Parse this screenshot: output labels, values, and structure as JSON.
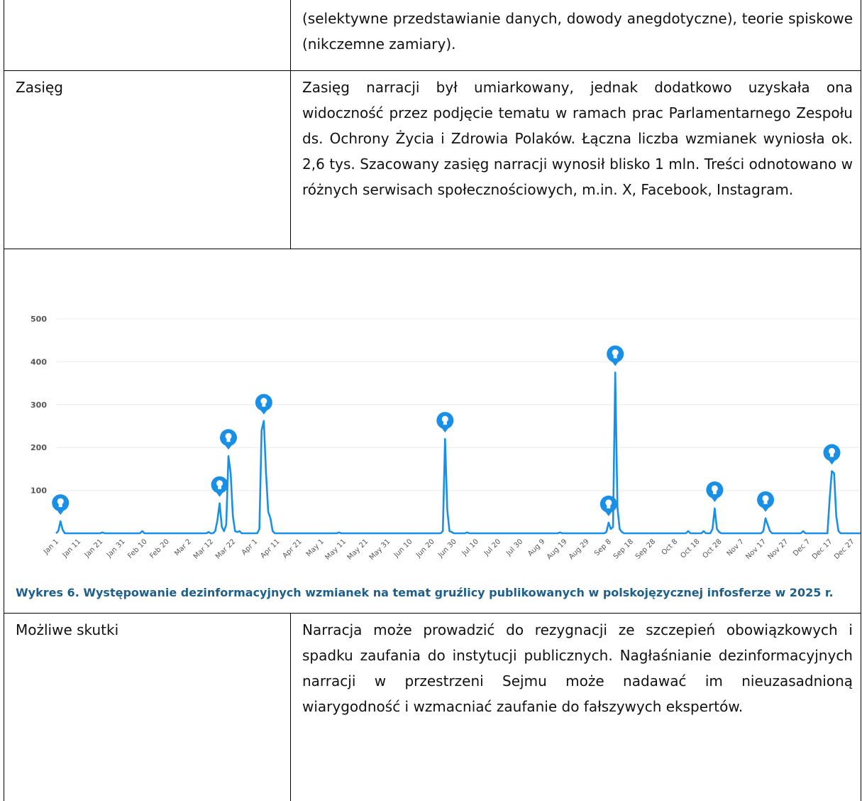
{
  "table": {
    "rows": [
      {
        "text": "(selektywne przedstawianie danych, dowody anegdotyczne), teorie spiskowe (nikczemne zamiary)."
      },
      {
        "label": "Zasięg",
        "text": "Zasięg narracji był umiarkowany, jednak dodatkowo uzyskała ona widoczność przez podjęcie tematu w ramach prac Parlamentarnego Zespołu ds. Ochrony Życia i Zdrowia Polaków. Łączna liczba wzmianek wyniosła ok. 2,6 tys. Szacowany zasięg narracji wynosił blisko 1 mln. Treści odnotowano w różnych serwisach społecznościowych, m.in. X, Facebook, Instagram."
      },
      {
        "label": "Możliwe skutki",
        "text": "Narracja może prowadzić do rezygnacji ze szczepień obowiązkowych i spadku zaufania do instytucji publicznych. Nagłaśnianie dezinformacyjnych narracji w przestrzeni Sejmu może nadawać im nieuzasadnioną wiarygodność i wzmacniać zaufanie do fałszywych ekspertów."
      }
    ]
  },
  "chart_data": {
    "type": "line",
    "caption": "Wykres 6. Występowanie dezinformacyjnych wzmianek na temat gruźlicy publikowanych w polskojęzycznej infosferze w 2025 r.",
    "color": "#1a8fe6",
    "ylim": [
      0,
      500
    ],
    "yticks": [
      100,
      200,
      300,
      400,
      500
    ],
    "grid": true,
    "categories": [
      "Jan 1",
      null,
      null,
      null,
      null,
      null,
      null,
      null,
      null,
      null,
      "Jan 11",
      null,
      null,
      null,
      null,
      null,
      null,
      null,
      null,
      null,
      "Jan 21",
      null,
      null,
      null,
      null,
      null,
      null,
      null,
      null,
      null,
      "Jan 31",
      null,
      null,
      null,
      null,
      null,
      null,
      null,
      null,
      null,
      "Feb 10",
      null,
      null,
      null,
      null,
      null,
      null,
      null,
      null,
      null,
      "Feb 20",
      null,
      null,
      null,
      null,
      null,
      null,
      null,
      null,
      null,
      "Mar 2",
      null,
      null,
      null,
      null,
      null,
      null,
      null,
      null,
      null,
      "Mar 12",
      null,
      null,
      null,
      null,
      null,
      null,
      null,
      null,
      null,
      "Mar 22",
      null,
      null,
      null,
      null,
      null,
      null,
      null,
      null,
      null,
      "Apr 1",
      null,
      null,
      null,
      null,
      null,
      null,
      null,
      null,
      null,
      "Apr 11",
      null,
      null,
      null,
      null,
      null,
      null,
      null,
      null,
      null,
      "Apr 21",
      null,
      null,
      null,
      null,
      null,
      null,
      null,
      null,
      null,
      "May 1",
      null,
      null,
      null,
      null,
      null,
      null,
      null,
      null,
      null,
      "May 11",
      null,
      null,
      null,
      null,
      null,
      null,
      null,
      null,
      null,
      "May 21",
      null,
      null,
      null,
      null,
      null,
      null,
      null,
      null,
      null,
      "May 31",
      null,
      null,
      null,
      null,
      null,
      null,
      null,
      null,
      null,
      "Jun 10",
      null,
      null,
      null,
      null,
      null,
      null,
      null,
      null,
      null,
      "Jun 20",
      null,
      null,
      null,
      null,
      null,
      null,
      null,
      null,
      null,
      "Jun 30",
      null,
      null,
      null,
      null,
      null,
      null,
      null,
      null,
      null,
      "Jul 10",
      null,
      null,
      null,
      null,
      null,
      null,
      null,
      null,
      null,
      "Jul 20",
      null,
      null,
      null,
      null,
      null,
      null,
      null,
      null,
      null,
      "Jul 30",
      null,
      null,
      null,
      null,
      null,
      null,
      null,
      null,
      null,
      "Aug 9",
      null,
      null,
      null,
      null,
      null,
      null,
      null,
      null,
      null,
      "Aug 19",
      null,
      null,
      null,
      null,
      null,
      null,
      null,
      null,
      null,
      "Aug 29",
      null,
      null,
      null,
      null,
      null,
      null,
      null,
      null,
      null,
      "Sep 8",
      null,
      null,
      null,
      null,
      null,
      null,
      null,
      null,
      null,
      "Sep 18",
      null,
      null,
      null,
      null,
      null,
      null,
      null,
      null,
      null,
      "Sep 28",
      null,
      null,
      null,
      null,
      null,
      null,
      null,
      null,
      null,
      "Oct 8",
      null,
      null,
      null,
      null,
      null,
      null,
      null,
      null,
      null,
      "Oct 18",
      null,
      null,
      null,
      null,
      null,
      null,
      null,
      null,
      null,
      "Oct 28",
      null,
      null,
      null,
      null,
      null,
      null,
      null,
      null,
      null,
      "Nov 7",
      null,
      null,
      null,
      null,
      null,
      null,
      null,
      null,
      null,
      "Nov 17",
      null,
      null,
      null,
      null,
      null,
      null,
      null,
      null,
      null,
      "Nov 27",
      null,
      null,
      null,
      null,
      null,
      null,
      null,
      null,
      null,
      "Dec 7",
      null,
      null,
      null,
      null,
      null,
      null,
      null,
      null,
      null,
      "Dec 17",
      null,
      null,
      null,
      null,
      null,
      null,
      null,
      null,
      null,
      "Dec 27",
      null,
      null,
      null,
      null
    ],
    "values": [
      0,
      5,
      28,
      8,
      0,
      0,
      0,
      0,
      0,
      0,
      0,
      0,
      0,
      0,
      0,
      0,
      0,
      0,
      0,
      0,
      0,
      2,
      0,
      0,
      0,
      0,
      0,
      0,
      0,
      0,
      0,
      0,
      0,
      0,
      0,
      0,
      0,
      0,
      0,
      5,
      0,
      0,
      0,
      0,
      0,
      0,
      0,
      0,
      0,
      0,
      0,
      0,
      0,
      0,
      0,
      0,
      0,
      0,
      0,
      0,
      0,
      0,
      0,
      0,
      0,
      0,
      0,
      0,
      0,
      3,
      0,
      0,
      5,
      30,
      70,
      15,
      5,
      20,
      180,
      140,
      40,
      5,
      3,
      5,
      0,
      0,
      0,
      0,
      0,
      0,
      0,
      0,
      10,
      240,
      262,
      140,
      50,
      35,
      5,
      0,
      0,
      0,
      0,
      0,
      0,
      0,
      0,
      0,
      0,
      0,
      0,
      0,
      0,
      0,
      0,
      0,
      0,
      0,
      0,
      0,
      0,
      0,
      0,
      0,
      0,
      0,
      0,
      0,
      2,
      0,
      0,
      0,
      0,
      0,
      0,
      0,
      0,
      0,
      0,
      0,
      0,
      0,
      0,
      0,
      0,
      0,
      0,
      0,
      0,
      0,
      0,
      0,
      0,
      0,
      0,
      0,
      0,
      0,
      0,
      0,
      0,
      0,
      0,
      0,
      0,
      0,
      0,
      0,
      0,
      0,
      0,
      0,
      0,
      0,
      0,
      5,
      220,
      55,
      5,
      3,
      0,
      0,
      0,
      0,
      0,
      0,
      2,
      0,
      0,
      0,
      0,
      0,
      0,
      0,
      0,
      0,
      0,
      0,
      0,
      0,
      0,
      0,
      0,
      0,
      0,
      0,
      0,
      0,
      0,
      0,
      0,
      0,
      0,
      0,
      0,
      0,
      0,
      0,
      0,
      0,
      0,
      0,
      0,
      0,
      0,
      0,
      0,
      0,
      2,
      0,
      0,
      0,
      0,
      0,
      0,
      0,
      0,
      0,
      0,
      0,
      0,
      0,
      0,
      0,
      0,
      0,
      0,
      0,
      0,
      3,
      25,
      10,
      15,
      375,
      60,
      10,
      3,
      0,
      0,
      0,
      0,
      0,
      0,
      0,
      0,
      0,
      0,
      0,
      0,
      0,
      0,
      0,
      0,
      0,
      0,
      0,
      0,
      0,
      0,
      0,
      0,
      0,
      0,
      0,
      0,
      0,
      5,
      0,
      0,
      0,
      0,
      0,
      0,
      5,
      0,
      0,
      0,
      10,
      58,
      10,
      3,
      0,
      0,
      0,
      0,
      0,
      0,
      0,
      0,
      0,
      0,
      0,
      0,
      0,
      0,
      0,
      0,
      0,
      0,
      0,
      5,
      35,
      20,
      5,
      0,
      0,
      0,
      0,
      0,
      0,
      0,
      0,
      0,
      0,
      0,
      0,
      0,
      0,
      5,
      0,
      0,
      0,
      0,
      0,
      0,
      0,
      0,
      0,
      0,
      0,
      80,
      145,
      140,
      40,
      5,
      0,
      0,
      0,
      0,
      0,
      0,
      0,
      0,
      0,
      0
    ]
  }
}
